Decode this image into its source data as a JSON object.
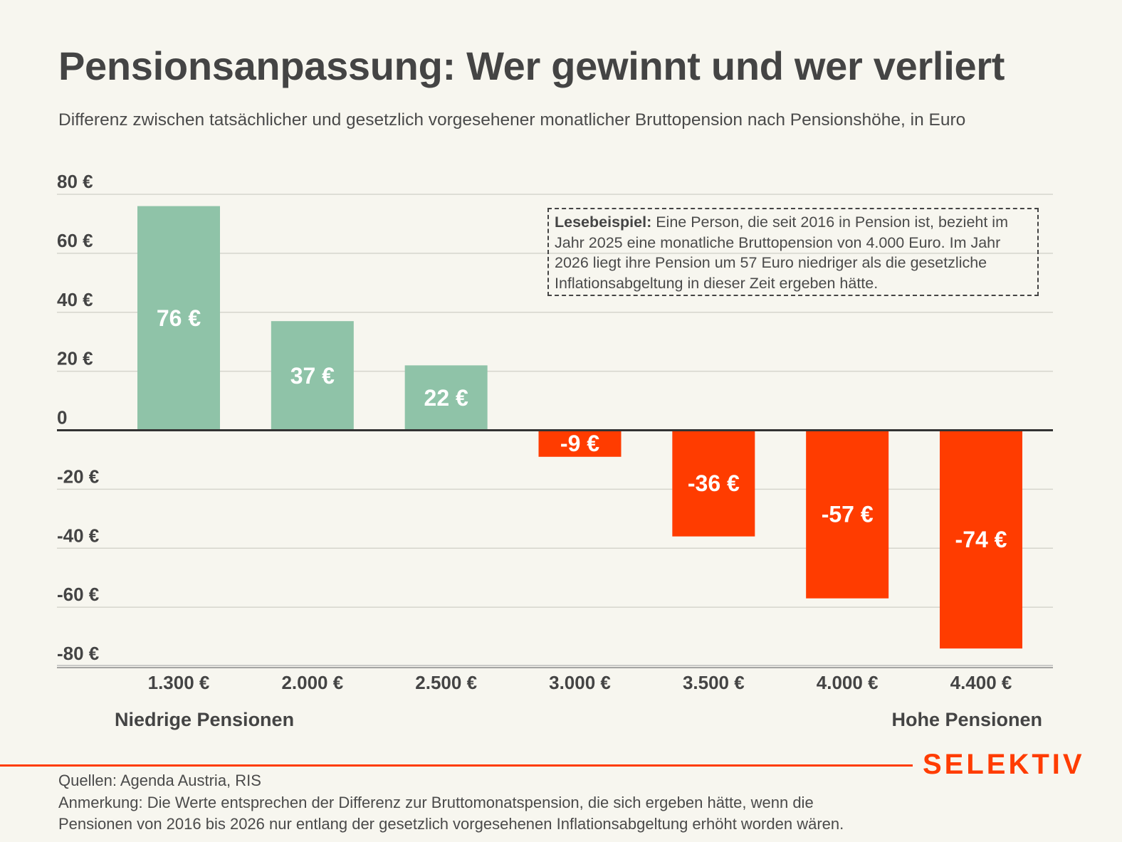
{
  "header": {
    "title": "Pensionsanpassung: Wer gewinnt und wer verliert",
    "subtitle": "Differenz zwischen tatsächlicher und gesetzlich vorgesehener monatlicher Bruttopension nach Pensionshöhe, in Euro"
  },
  "annotation": {
    "bold_label": "Lesebeispiel:",
    "text": " Eine Person, die seit 2016 in Pension ist, bezieht im Jahr 2025 eine monatliche Bruttopension von 4.000 Euro. Im Jahr 2026 liegt ihre Pension um 57 Euro niedriger als die gesetzliche Inflationsabgeltung in dieser Zeit ergeben hätte."
  },
  "groups": {
    "low": "Niedrige Pensionen",
    "high": "Hohe Pensionen"
  },
  "footer": {
    "brand": "SELEKTIV",
    "sources": "Quellen: Agenda Austria, RIS",
    "note_line1": "Anmerkung: Die Werte entsprechen der Differenz zur Bruttomonatspension, die sich ergeben hätte, wenn die",
    "note_line2": "Pensionen von 2016 bis 2026 nur entlang der gesetzlich vorgesehenen Inflationsabgeltung erhöht worden wären."
  },
  "colors": {
    "positive": "#8fc3a8",
    "negative": "#ff3c00",
    "text": "#444444",
    "background": "#f7f6ef",
    "brand": "#ff3c00"
  },
  "chart_data": {
    "type": "bar",
    "title": "Pensionsanpassung: Wer gewinnt und wer verliert",
    "subtitle": "Differenz zwischen tatsächlicher und gesetzlich vorgesehener monatlicher Bruttopension nach Pensionshöhe, in Euro",
    "xlabel": "",
    "ylabel": "",
    "categories": [
      "1.300 €",
      "2.000 €",
      "2.500 €",
      "3.000 €",
      "3.500 €",
      "4.000 €",
      "4.400 €"
    ],
    "values": [
      76,
      37,
      22,
      -9,
      -36,
      -57,
      -74
    ],
    "data_labels": [
      "76 €",
      "37 €",
      "22 €",
      "-9 €",
      "-36 €",
      "-57 €",
      "-74 €"
    ],
    "ylim": [
      -80,
      80
    ],
    "yticks": [
      80,
      60,
      40,
      20,
      0,
      -20,
      -40,
      -60,
      -80
    ],
    "ytick_labels": [
      "80 €",
      "60 €",
      "40 €",
      "20 €",
      "0",
      "-20 €",
      "-40 €",
      "-60 €",
      "-80 €"
    ],
    "grid": true,
    "legend": "none"
  }
}
